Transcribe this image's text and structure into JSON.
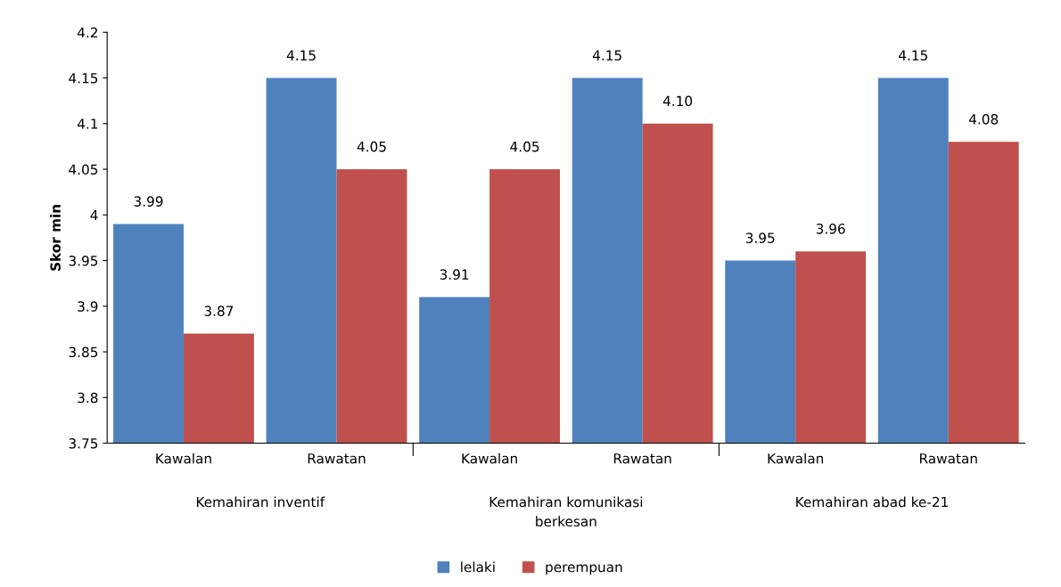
{
  "chart_data": {
    "type": "bar",
    "ylabel": "Skor min",
    "categories": [
      "Kawalan",
      "Rawatan",
      "Kawalan",
      "Rawatan",
      "Kawalan",
      "Rawatan"
    ],
    "series": [
      {
        "name": "lelaki",
        "color": "#4f81bd",
        "values": [
          3.99,
          4.15,
          3.91,
          4.15,
          3.95,
          4.15
        ],
        "value_labels": [
          "3.99",
          "4.15",
          "3.91",
          "4.15",
          "3.95",
          "4.15"
        ]
      },
      {
        "name": "perempuan",
        "color": "#c0504d",
        "values": [
          3.87,
          4.05,
          4.05,
          4.1,
          3.96,
          4.08
        ],
        "value_labels": [
          "3.87",
          "4.05",
          "4.05",
          "4.10",
          "3.96",
          "4.08"
        ]
      }
    ],
    "annotations": [
      "Kemahiran inventif",
      "Kemahiran komunikasi\nberkesan",
      "Kemahiran abad ke-21"
    ],
    "ylim": [
      3.75,
      4.2
    ],
    "yticks": [
      3.75,
      3.8,
      3.85,
      3.9,
      3.95,
      4,
      4.05,
      4.1,
      4.15,
      4.2
    ],
    "grid": false,
    "legend": "bottom"
  }
}
